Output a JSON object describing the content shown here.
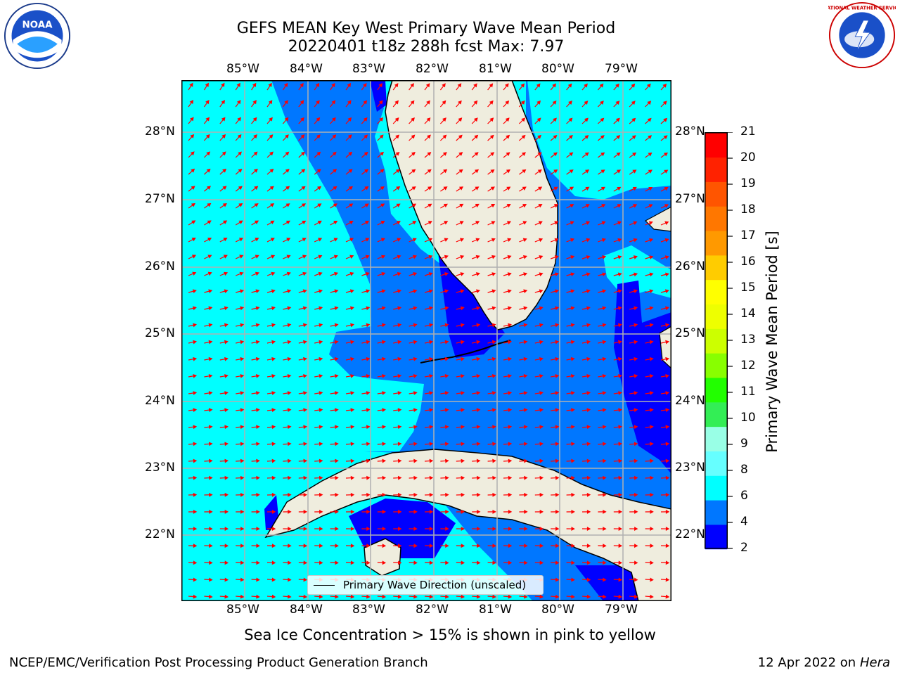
{
  "title_line1": "GEFS MEAN Key West Primary Wave Mean Period",
  "title_line2": "20220401 t18z 288h fcst   Max: 7.97",
  "lon_ticks": [
    "85°W",
    "84°W",
    "83°W",
    "82°W",
    "81°W",
    "80°W",
    "79°W"
  ],
  "lat_ticks": [
    "28°N",
    "27°N",
    "26°N",
    "25°N",
    "24°N",
    "23°N",
    "22°N"
  ],
  "legend_label": "Primary Wave Direction (unscaled)",
  "colorbar": {
    "label": "Primary Wave Mean Period [s]",
    "ticks": [
      "21",
      "20",
      "19",
      "18",
      "17",
      "16",
      "15",
      "14",
      "13",
      "12",
      "11",
      "10",
      "9",
      "8",
      "6",
      "4",
      "2"
    ],
    "colors": [
      "#0000ff",
      "#0077ff",
      "#00ffff",
      "#66ffff",
      "#99ffe6",
      "#33ee55",
      "#22ff00",
      "#88ff00",
      "#ccff00",
      "#eeff00",
      "#ffff00",
      "#ffcc00",
      "#ff9900",
      "#ff7700",
      "#ff5500",
      "#ff2200",
      "#ff0000"
    ]
  },
  "colors": {
    "land": "#efedde",
    "sea_high": "#00ffff",
    "sea_mid": "#0077ff",
    "sea_low": "#0000ff",
    "arrow": "#ff0000",
    "grid": "#b0b0b0"
  },
  "logos": {
    "left": "noara-logo",
    "left_text": "NOAA",
    "right": "nws-logo",
    "right_text": "NATIONAL WEATHER SERVICE"
  },
  "sea_ice_note": "Sea Ice Concentration > 15% is shown in pink to yellow",
  "footer_left": "NCEP/EMC/Verification Post Processing Product Generation Branch",
  "footer_date": "12 Apr 2022 on ",
  "footer_host": "Hera"
}
